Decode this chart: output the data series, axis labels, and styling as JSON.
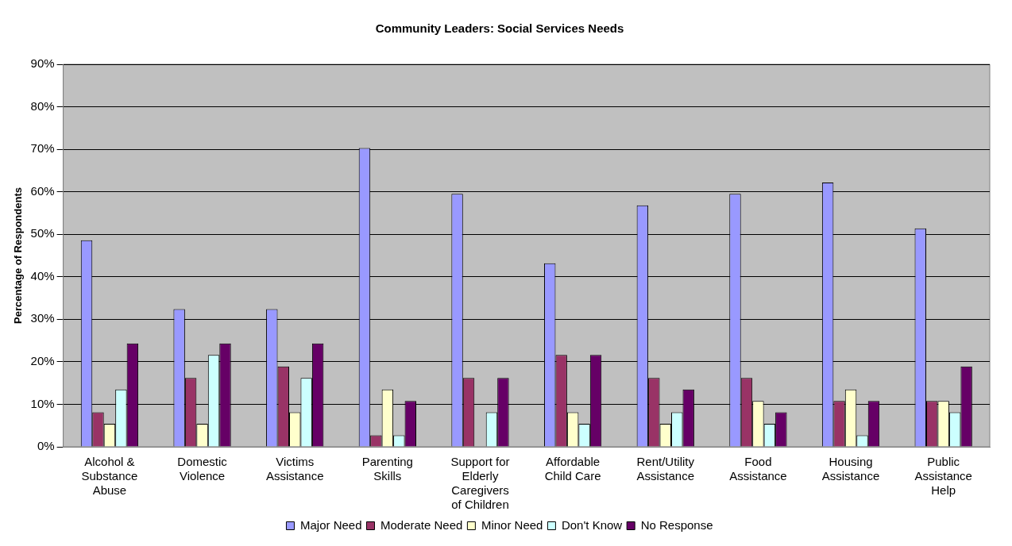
{
  "chart_data": {
    "type": "bar",
    "title": "Community Leaders: Social Services Needs",
    "ylabel": "Percentage of Respondents",
    "categories": [
      "Alcohol & Substance Abuse",
      "Domestic Violence",
      "Victims Assistance",
      "Parenting Skills",
      "Support for Elderly Caregivers of Children",
      "Affordable Child Care",
      "Rent/Utility Assistance",
      "Food Assistance",
      "Housing Assistance",
      "Public Assistance Help"
    ],
    "series": [
      {
        "name": "Major Need",
        "color": "#9999ff",
        "values": [
          48.6,
          32.4,
          32.4,
          70.3,
          59.5,
          43.2,
          56.8,
          59.5,
          62.2,
          51.4
        ]
      },
      {
        "name": "Moderate Need",
        "color": "#993366",
        "values": [
          8.1,
          16.2,
          18.9,
          2.7,
          16.2,
          21.6,
          16.2,
          16.2,
          10.8,
          10.8
        ]
      },
      {
        "name": "Minor Need",
        "color": "#ffffcc",
        "values": [
          5.4,
          5.4,
          8.1,
          13.5,
          0,
          8.1,
          5.4,
          10.8,
          13.5,
          10.8
        ]
      },
      {
        "name": "Don't Know",
        "color": "#ccffff",
        "values": [
          13.5,
          21.6,
          16.2,
          2.7,
          8.1,
          5.4,
          8.1,
          5.4,
          2.7,
          8.1
        ]
      },
      {
        "name": "No Response",
        "color": "#660066",
        "values": [
          24.3,
          24.3,
          24.3,
          10.8,
          16.2,
          21.6,
          13.5,
          8.1,
          10.8,
          18.9
        ]
      }
    ],
    "ylim": [
      0,
      90
    ],
    "yticks": [
      {
        "value": 0,
        "label": "0%"
      },
      {
        "value": 10,
        "label": "10%"
      },
      {
        "value": 20,
        "label": "20%"
      },
      {
        "value": 30,
        "label": "30%"
      },
      {
        "value": 40,
        "label": "40%"
      },
      {
        "value": 50,
        "label": "50%"
      },
      {
        "value": 60,
        "label": "60%"
      },
      {
        "value": 70,
        "label": "70%"
      },
      {
        "value": 80,
        "label": "80%"
      },
      {
        "value": 90,
        "label": "90%"
      }
    ],
    "grid": "y",
    "legend": "bottom"
  }
}
